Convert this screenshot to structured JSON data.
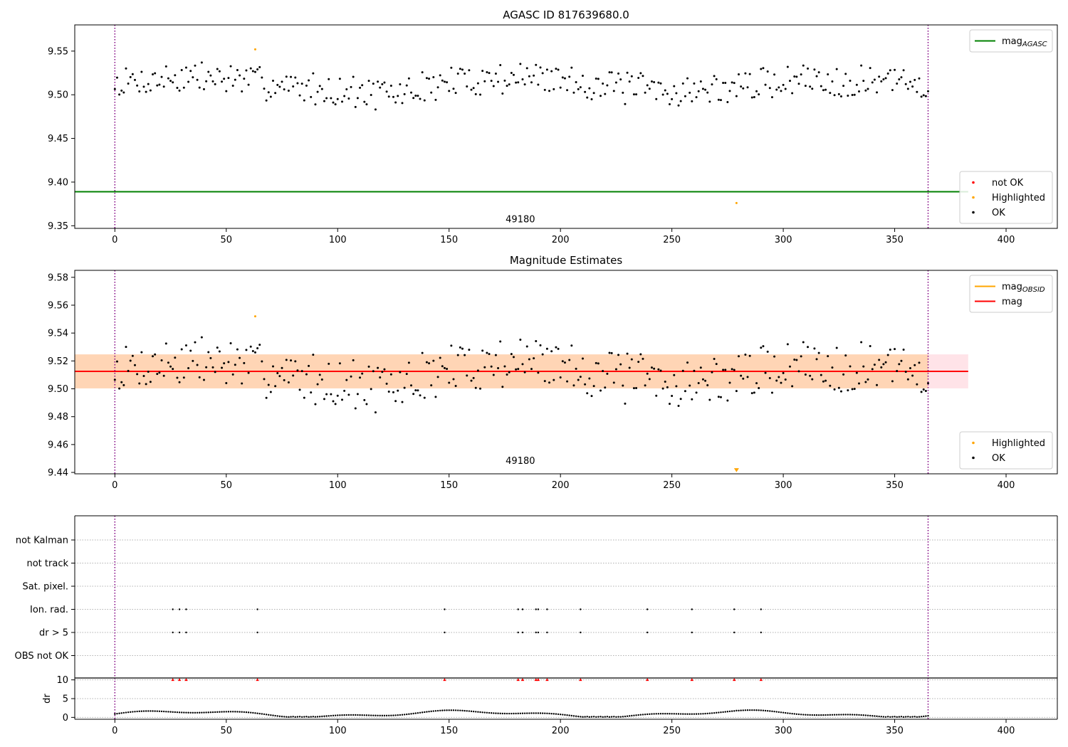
{
  "chart_data": [
    {
      "type": "scatter",
      "title": "AGASC ID 817639680.0",
      "xlim": [
        -18,
        423
      ],
      "ylim": [
        9.347,
        9.58
      ],
      "xticks": [
        0,
        50,
        100,
        150,
        200,
        250,
        300,
        350,
        400
      ],
      "yticks": [
        9.35,
        9.4,
        9.45,
        9.5,
        9.55
      ],
      "hlines": [
        {
          "name": "mag_AGASC",
          "y": 9.389,
          "xmax": 383,
          "color": "#008000"
        }
      ],
      "vlines": [
        {
          "x": 0,
          "color": "#800080",
          "style": "dotted"
        },
        {
          "x": 365,
          "color": "#800080",
          "style": "dotted"
        }
      ],
      "annotations": [
        {
          "text": "49180",
          "x": 182,
          "y": 9.357
        }
      ],
      "legends": [
        {
          "placement": "top-right",
          "entries": [
            {
              "kind": "line",
              "color": "#008000",
              "label": "mag",
              "sub": "AGASC"
            }
          ]
        },
        {
          "placement": "bottom-right",
          "entries": [
            {
              "kind": "dot",
              "color": "#ff0000",
              "label": "not OK"
            },
            {
              "kind": "dot",
              "color": "#ffa500",
              "label": "Highlighted"
            },
            {
              "kind": "dot",
              "color": "#000000",
              "label": "OK"
            }
          ]
        }
      ],
      "series": [
        {
          "name": "Highlighted",
          "color": "#ffa500",
          "points": [
            [
              63,
              9.552
            ],
            [
              279,
              9.376
            ]
          ]
        },
        {
          "name": "OK",
          "color": "#000000",
          "pattern": "mag_walk",
          "count": 366,
          "x_start": 0,
          "x_end": 365
        }
      ]
    },
    {
      "type": "scatter",
      "title": "Magnitude Estimates",
      "xlim": [
        -18,
        423
      ],
      "ylim": [
        9.439,
        9.585
      ],
      "xticks": [
        0,
        50,
        100,
        150,
        200,
        250,
        300,
        350,
        400
      ],
      "yticks": [
        9.44,
        9.46,
        9.48,
        9.5,
        9.52,
        9.54,
        9.56,
        9.58
      ],
      "hlines": [
        {
          "name": "mag_OBSID",
          "y": 9.5125,
          "xmax": 365,
          "color": "#ffa500"
        },
        {
          "name": "mag",
          "y": 9.5125,
          "xmax": 383,
          "color": "#ff0000"
        }
      ],
      "bands": [
        {
          "y0": 9.5003,
          "y1": 9.5247,
          "xmax": 383,
          "color": "#ffc0cb",
          "opacity": 0.45
        },
        {
          "y0": 9.5003,
          "y1": 9.5247,
          "xmax": 365,
          "color": "#ffa500",
          "opacity": 0.22
        }
      ],
      "vlines": [
        {
          "x": 0,
          "color": "#800080",
          "style": "dotted"
        },
        {
          "x": 365,
          "color": "#800080",
          "style": "dotted"
        }
      ],
      "annotations": [
        {
          "text": "49180",
          "x": 182,
          "y": 9.443
        }
      ],
      "legends": [
        {
          "placement": "top-right",
          "entries": [
            {
              "kind": "line",
              "color": "#ffa500",
              "label": "mag",
              "sub": "OBSID"
            },
            {
              "kind": "line",
              "color": "#ff0000",
              "label": "mag"
            }
          ]
        },
        {
          "placement": "bottom-right",
          "entries": [
            {
              "kind": "dot",
              "color": "#ffa500",
              "label": "Highlighted"
            },
            {
              "kind": "dot",
              "color": "#000000",
              "label": "OK"
            }
          ]
        }
      ],
      "series": [
        {
          "name": "Highlighted",
          "color": "#ffa500",
          "points": [
            [
              63,
              9.552
            ]
          ]
        },
        {
          "name": "Highlighted-out-of-range",
          "color": "#ffa500",
          "marker": "triangle-down",
          "points": [
            [
              279,
              9.441
            ]
          ]
        },
        {
          "name": "OK",
          "color": "#000000",
          "pattern": "mag_walk",
          "count": 366,
          "x_start": 0,
          "x_end": 365
        }
      ]
    },
    {
      "type": "scatter",
      "title": "",
      "xlim": [
        -18,
        423
      ],
      "yticklabels": [
        "not Kalman",
        "not track",
        "Sat. pixel.",
        "Ion. rad.",
        "dr > 5",
        "OBS not OK"
      ],
      "flag_x": [
        26,
        29,
        32,
        64,
        148,
        181,
        183,
        189,
        190,
        194,
        209,
        239,
        259,
        278,
        290
      ],
      "flags_on": [
        "Ion. rad.",
        "dr > 5"
      ],
      "vlines": [
        {
          "x": 0,
          "color": "#800080",
          "style": "dotted"
        },
        {
          "x": 365,
          "color": "#800080",
          "style": "dotted"
        }
      ]
    },
    {
      "type": "scatter",
      "title": "",
      "xlim": [
        -18,
        423
      ],
      "ylim": [
        -0.5,
        10.5
      ],
      "xticks": [
        0,
        50,
        100,
        150,
        200,
        250,
        300,
        350,
        400
      ],
      "yticks": [
        0,
        5,
        10
      ],
      "ylabel": "dr",
      "marker_series": {
        "name": "dr > 5",
        "color": "#ff0000",
        "y": 10,
        "x": [
          26,
          29,
          32,
          64,
          148,
          181,
          183,
          189,
          190,
          194,
          209,
          239,
          259,
          278,
          290
        ]
      },
      "series": [
        {
          "name": "dr",
          "color": "#000000",
          "pattern": "dr_wave",
          "count": 366,
          "x_start": 0,
          "x_end": 365
        }
      ],
      "vlines": [
        {
          "x": 0,
          "color": "#800080",
          "style": "dotted"
        },
        {
          "x": 365,
          "color": "#800080",
          "style": "dotted"
        }
      ]
    }
  ]
}
